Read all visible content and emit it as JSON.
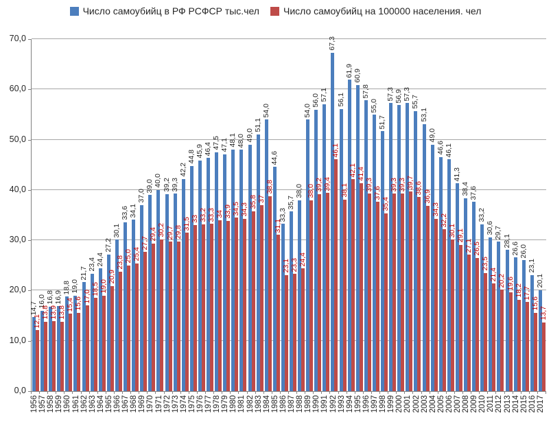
{
  "legend": [
    {
      "label": "Число самоубийц в РФ РСФСР тыс.чел",
      "color": "#4C7EBD"
    },
    {
      "label": "Число самоубийц на 100000 населения. чел",
      "color": "#BE4B48"
    }
  ],
  "chart_data": {
    "type": "bar",
    "title": "",
    "xlabel": "",
    "ylabel": "",
    "grid": true,
    "legend_position": "top",
    "axis": {
      "ymin": 0,
      "ymax": 70,
      "ytick_step": 10,
      "ytick_labels": [
        "0,0",
        "10,0",
        "20,0",
        "30,0",
        "40,0",
        "50,0",
        "60,0",
        "70,0"
      ]
    },
    "categories": [
      "1956",
      "1957",
      "1958",
      "1959",
      "1960",
      "1961",
      "1962",
      "1963",
      "1964",
      "1965",
      "1966",
      "1967",
      "1968",
      "1969",
      "1970",
      "1971",
      "1972",
      "1973",
      "1974",
      "1975",
      "1976",
      "1977",
      "1978",
      "1979",
      "1980",
      "1981",
      "1982",
      "1983",
      "1984",
      "1985",
      "1986",
      "1987",
      "1988",
      "1989",
      "1990",
      "1991",
      "1992",
      "1993",
      "1994",
      "1995",
      "1996",
      "1997",
      "1998",
      "1999",
      "2000",
      "2001",
      "2002",
      "2003",
      "2004",
      "2005",
      "2006",
      "2007",
      "2008",
      "2009",
      "2010",
      "2011",
      "2012",
      "2013",
      "2014",
      "2015",
      "2016",
      "2017"
    ],
    "series": [
      {
        "name": "Число самоубийц в РФ РСФСР тыс.чел",
        "color": "#4C7EBD",
        "label_color": "#262626",
        "values": [
          14.7,
          16.0,
          16.8,
          16.9,
          18.8,
          19.0,
          21.7,
          23.4,
          24.4,
          27.2,
          30.1,
          33.6,
          34.1,
          37.0,
          39.0,
          40.0,
          39.2,
          39.3,
          42.2,
          44.8,
          45.9,
          46.4,
          47.5,
          47.1,
          48.1,
          48.0,
          49.0,
          51.1,
          54.0,
          44.6,
          33.3,
          35.7,
          38.0,
          54.0,
          56.0,
          57.1,
          67.3,
          56.1,
          61.9,
          60.9,
          57.8,
          55.0,
          51.7,
          57.3,
          56.9,
          57.3,
          55.7,
          53.1,
          49.0,
          46.6,
          46.1,
          41.3,
          38.4,
          37.6,
          33.2,
          30.6,
          29.7,
          28.1,
          26.6,
          26.0,
          23.1,
          20.1
        ],
        "labels": [
          "14,7",
          "16,0",
          "16,8",
          "16,9",
          "18,8",
          "19,0",
          "21,7",
          "23,4",
          "24,4",
          "27,2",
          "30,1",
          "33,6",
          "34,1",
          "37,0",
          "39,0",
          "40,0",
          "39,2",
          "39,3",
          "42,2",
          "44,8",
          "45,9",
          "46,4",
          "47,5",
          "47,1",
          "48,1",
          "48,0",
          "49,0",
          "51,1",
          "54,0",
          "44,6",
          "33,3",
          "35,7",
          "38,0",
          "54,0",
          "56,0",
          "57,1",
          "67,3",
          "56,1",
          "61,9",
          "60,9",
          "57,8",
          "55,0",
          "51,7",
          "57,3",
          "56,9",
          "57,3",
          "55,7",
          "53,1",
          "49,0",
          "46,6",
          "46,1",
          "41,3",
          "38,4",
          "37,6",
          "33,2",
          "30,6",
          "29,7",
          "28,1",
          "26,6",
          "26,0",
          "23,1",
          "20,1"
        ]
      },
      {
        "name": "Число самоубийц на 100000 населения. чел",
        "color": "#BE4B48",
        "label_color": "#C00000",
        "values": [
          12.1,
          13.8,
          13.9,
          13.8,
          15.4,
          15.6,
          17.0,
          18.5,
          19.0,
          20.9,
          23.8,
          25.0,
          25.4,
          27.7,
          29.4,
          30.2,
          29.7,
          29.8,
          31.5,
          33,
          33.2,
          33.3,
          34,
          33.9,
          34.5,
          34.3,
          35.8,
          37,
          38.8,
          31.1,
          23.1,
          23.3,
          24.4,
          38.0,
          39.2,
          39.4,
          46.1,
          38.1,
          42.1,
          41.4,
          39.3,
          37.6,
          35.4,
          39.3,
          39.3,
          39.7,
          38.6,
          36.9,
          34.3,
          32.2,
          30.1,
          29.1,
          27.1,
          26.5,
          23.5,
          21.4,
          20.2,
          19.6,
          18.2,
          17.7,
          15.6,
          13.7
        ],
        "labels": [
          "12,1",
          "13,8",
          "13,9",
          "13,8",
          "15,4",
          "15,6",
          "17,0",
          "18,5",
          "19,0",
          "20,9",
          "23,8",
          "25,0",
          "25,4",
          "27,7",
          "29,4",
          "30,2",
          "29,7",
          "29,8",
          "31,5",
          "33",
          "33,2",
          "33,3",
          "34",
          "33,9",
          "34,5",
          "34,3",
          "35,8",
          "37",
          "38,8",
          "31,1",
          "23,1",
          "23,3",
          "24,4",
          "38,0",
          "39,2",
          "39,4",
          "46,1",
          "38,1",
          "42,1",
          "41,4",
          "39,3",
          "37,6",
          "35,4",
          "39,3",
          "39,3",
          "39,7",
          "38,6",
          "36,9",
          "34,3",
          "32,2",
          "30,1",
          "29,1",
          "27,1",
          "26,5",
          "23,5",
          "21,4",
          "20,2",
          "19,6",
          "18,2",
          "17,7",
          "15,6",
          "13,7"
        ]
      }
    ]
  }
}
